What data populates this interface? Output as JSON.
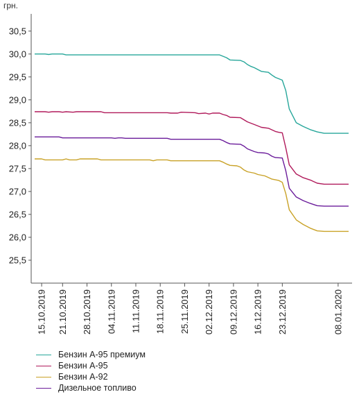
{
  "chart_data": {
    "type": "line",
    "ylabel": "грн.",
    "ylim": [
      25.0,
      30.8
    ],
    "yticks": [
      "25,5",
      "26,0",
      "26,5",
      "27,0",
      "27,5",
      "28,0",
      "28,5",
      "29,0",
      "29,5",
      "30,0",
      "30,5"
    ],
    "x_start": "2019-10-12",
    "x_end": "2020-01-12",
    "xticks": [
      "15.10.2019",
      "21.10.2019",
      "28.10.2019",
      "04.11.2019",
      "11.11.2019",
      "18.11.2019",
      "25.11.2019",
      "02.12.2019",
      "09.12.2019",
      "16.12.2019",
      "23.12.2019",
      "08.01.2020"
    ],
    "grid": false,
    "legend_position": "bottom-left",
    "series": [
      {
        "name": "Бензин А-95 премиум",
        "color": "#26a69a",
        "points": [
          [
            "2019-10-13",
            30.0
          ],
          [
            "2019-10-16",
            30.0
          ],
          [
            "2019-10-17",
            29.99
          ],
          [
            "2019-10-18",
            30.0
          ],
          [
            "2019-10-21",
            30.0
          ],
          [
            "2019-10-22",
            29.98
          ],
          [
            "2019-11-20",
            29.98
          ],
          [
            "2019-12-05",
            29.98
          ],
          [
            "2019-12-06",
            29.95
          ],
          [
            "2019-12-07",
            29.92
          ],
          [
            "2019-12-08",
            29.87
          ],
          [
            "2019-12-11",
            29.86
          ],
          [
            "2019-12-12",
            29.83
          ],
          [
            "2019-12-13",
            29.77
          ],
          [
            "2019-12-14",
            29.73
          ],
          [
            "2019-12-15",
            29.7
          ],
          [
            "2019-12-16",
            29.66
          ],
          [
            "2019-12-17",
            29.62
          ],
          [
            "2019-12-19",
            29.6
          ],
          [
            "2019-12-20",
            29.54
          ],
          [
            "2019-12-21",
            29.49
          ],
          [
            "2019-12-22",
            29.46
          ],
          [
            "2019-12-23",
            29.43
          ],
          [
            "2019-12-24",
            29.2
          ],
          [
            "2019-12-25",
            28.8
          ],
          [
            "2019-12-27",
            28.5
          ],
          [
            "2019-12-29",
            28.42
          ],
          [
            "2019-12-31",
            28.35
          ],
          [
            "2020-01-02",
            28.3
          ],
          [
            "2020-01-04",
            28.27
          ],
          [
            "2020-01-11",
            28.27
          ]
        ]
      },
      {
        "name": "Бензин А-95",
        "color": "#b0195a",
        "points": [
          [
            "2019-10-13",
            28.74
          ],
          [
            "2019-10-16",
            28.74
          ],
          [
            "2019-10-17",
            28.73
          ],
          [
            "2019-10-18",
            28.74
          ],
          [
            "2019-10-20",
            28.74
          ],
          [
            "2019-10-21",
            28.73
          ],
          [
            "2019-10-22",
            28.74
          ],
          [
            "2019-10-24",
            28.73
          ],
          [
            "2019-10-25",
            28.74
          ],
          [
            "2019-11-01",
            28.74
          ],
          [
            "2019-11-02",
            28.72
          ],
          [
            "2019-11-20",
            28.72
          ],
          [
            "2019-11-21",
            28.71
          ],
          [
            "2019-11-23",
            28.71
          ],
          [
            "2019-11-24",
            28.73
          ],
          [
            "2019-11-28",
            28.72
          ],
          [
            "2019-11-29",
            28.7
          ],
          [
            "2019-12-01",
            28.71
          ],
          [
            "2019-12-02",
            28.69
          ],
          [
            "2019-12-03",
            28.71
          ],
          [
            "2019-12-05",
            28.71
          ],
          [
            "2019-12-06",
            28.68
          ],
          [
            "2019-12-07",
            28.66
          ],
          [
            "2019-12-08",
            28.62
          ],
          [
            "2019-12-11",
            28.61
          ],
          [
            "2019-12-13",
            28.52
          ],
          [
            "2019-12-15",
            28.46
          ],
          [
            "2019-12-17",
            28.4
          ],
          [
            "2019-12-19",
            28.38
          ],
          [
            "2019-12-21",
            28.31
          ],
          [
            "2019-12-22",
            28.29
          ],
          [
            "2019-12-23",
            28.28
          ],
          [
            "2019-12-24",
            27.95
          ],
          [
            "2019-12-25",
            27.58
          ],
          [
            "2019-12-27",
            27.38
          ],
          [
            "2019-12-29",
            27.3
          ],
          [
            "2019-12-31",
            27.25
          ],
          [
            "2020-01-02",
            27.18
          ],
          [
            "2020-01-04",
            27.16
          ],
          [
            "2020-01-11",
            27.16
          ]
        ]
      },
      {
        "name": "Бензин А-92",
        "color": "#c9a227",
        "points": [
          [
            "2019-10-13",
            27.71
          ],
          [
            "2019-10-15",
            27.71
          ],
          [
            "2019-10-16",
            27.69
          ],
          [
            "2019-10-21",
            27.69
          ],
          [
            "2019-10-22",
            27.71
          ],
          [
            "2019-10-23",
            27.69
          ],
          [
            "2019-10-25",
            27.69
          ],
          [
            "2019-10-26",
            27.71
          ],
          [
            "2019-10-31",
            27.71
          ],
          [
            "2019-11-01",
            27.69
          ],
          [
            "2019-11-15",
            27.69
          ],
          [
            "2019-11-16",
            27.67
          ],
          [
            "2019-11-17",
            27.69
          ],
          [
            "2019-11-20",
            27.69
          ],
          [
            "2019-11-21",
            27.67
          ],
          [
            "2019-12-05",
            27.67
          ],
          [
            "2019-12-06",
            27.64
          ],
          [
            "2019-12-07",
            27.6
          ],
          [
            "2019-12-08",
            27.57
          ],
          [
            "2019-12-10",
            27.56
          ],
          [
            "2019-12-11",
            27.53
          ],
          [
            "2019-12-12",
            27.47
          ],
          [
            "2019-12-13",
            27.43
          ],
          [
            "2019-12-15",
            27.4
          ],
          [
            "2019-12-16",
            27.37
          ],
          [
            "2019-12-18",
            27.34
          ],
          [
            "2019-12-20",
            27.27
          ],
          [
            "2019-12-22",
            27.24
          ],
          [
            "2019-12-23",
            27.2
          ],
          [
            "2019-12-24",
            26.95
          ],
          [
            "2019-12-25",
            26.6
          ],
          [
            "2019-12-27",
            26.38
          ],
          [
            "2019-12-29",
            26.28
          ],
          [
            "2019-12-31",
            26.2
          ],
          [
            "2020-01-02",
            26.14
          ],
          [
            "2020-01-04",
            26.13
          ],
          [
            "2020-01-11",
            26.13
          ]
        ]
      },
      {
        "name": "Дизельное топливо",
        "color": "#6a1b9a",
        "points": [
          [
            "2019-10-13",
            28.19
          ],
          [
            "2019-10-20",
            28.19
          ],
          [
            "2019-10-21",
            28.17
          ],
          [
            "2019-11-04",
            28.17
          ],
          [
            "2019-11-05",
            28.16
          ],
          [
            "2019-11-06",
            28.17
          ],
          [
            "2019-11-07",
            28.17
          ],
          [
            "2019-11-08",
            28.16
          ],
          [
            "2019-11-20",
            28.16
          ],
          [
            "2019-11-21",
            28.14
          ],
          [
            "2019-12-05",
            28.14
          ],
          [
            "2019-12-06",
            28.11
          ],
          [
            "2019-12-07",
            28.07
          ],
          [
            "2019-12-08",
            28.04
          ],
          [
            "2019-12-11",
            28.03
          ],
          [
            "2019-12-12",
            27.99
          ],
          [
            "2019-12-13",
            27.93
          ],
          [
            "2019-12-14",
            27.9
          ],
          [
            "2019-12-15",
            27.87
          ],
          [
            "2019-12-16",
            27.85
          ],
          [
            "2019-12-18",
            27.84
          ],
          [
            "2019-12-19",
            27.82
          ],
          [
            "2019-12-20",
            27.77
          ],
          [
            "2019-12-21",
            27.74
          ],
          [
            "2019-12-23",
            27.73
          ],
          [
            "2019-12-24",
            27.45
          ],
          [
            "2019-12-25",
            27.07
          ],
          [
            "2019-12-27",
            26.88
          ],
          [
            "2019-12-29",
            26.8
          ],
          [
            "2019-12-31",
            26.74
          ],
          [
            "2020-01-02",
            26.69
          ],
          [
            "2020-01-04",
            26.68
          ],
          [
            "2020-01-11",
            26.68
          ]
        ]
      }
    ]
  }
}
